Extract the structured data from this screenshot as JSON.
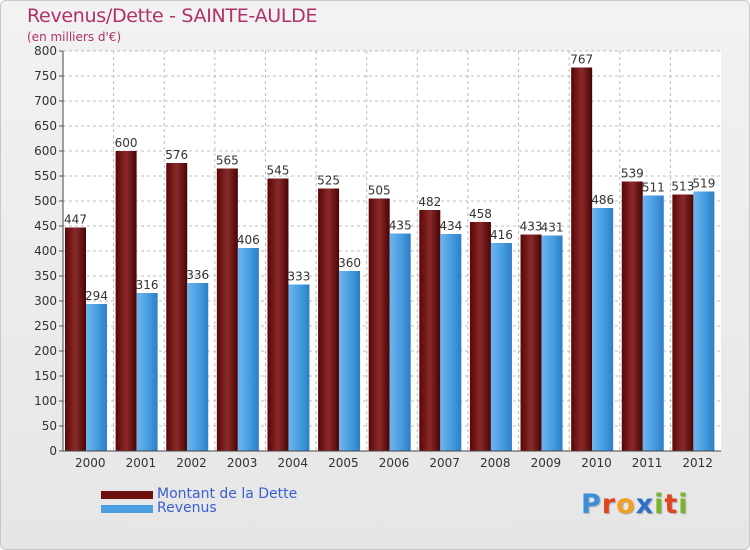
{
  "title": "Revenus/Dette - SAINTE-AULDE",
  "subtitle": "(en milliers d'€)",
  "logo_text": "Proxiti",
  "colors": {
    "dette": "#6e1010",
    "revenus": "#4a9fe2",
    "title": "#b0306a",
    "legend_text": "#3a5fd0"
  },
  "chart_data": {
    "type": "bar",
    "title": "Revenus/Dette - SAINTE-AULDE",
    "ylabel": "(en milliers d'€)",
    "xlabel": "",
    "categories": [
      "2000",
      "2001",
      "2002",
      "2003",
      "2004",
      "2005",
      "2006",
      "2007",
      "2008",
      "2009",
      "2010",
      "2011",
      "2012"
    ],
    "series": [
      {
        "name": "Montant de la Dette",
        "values": [
          447,
          600,
          576,
          565,
          545,
          525,
          505,
          482,
          458,
          433,
          767,
          539,
          513
        ]
      },
      {
        "name": "Revenus",
        "values": [
          294,
          316,
          336,
          406,
          333,
          360,
          435,
          434,
          416,
          431,
          486,
          511,
          519
        ]
      }
    ],
    "ylim": [
      0,
      800
    ],
    "yticks": [
      0,
      50,
      100,
      150,
      200,
      250,
      300,
      350,
      400,
      450,
      500,
      550,
      600,
      650,
      700,
      750,
      800
    ],
    "grid": true,
    "legend": "bottom-left"
  }
}
